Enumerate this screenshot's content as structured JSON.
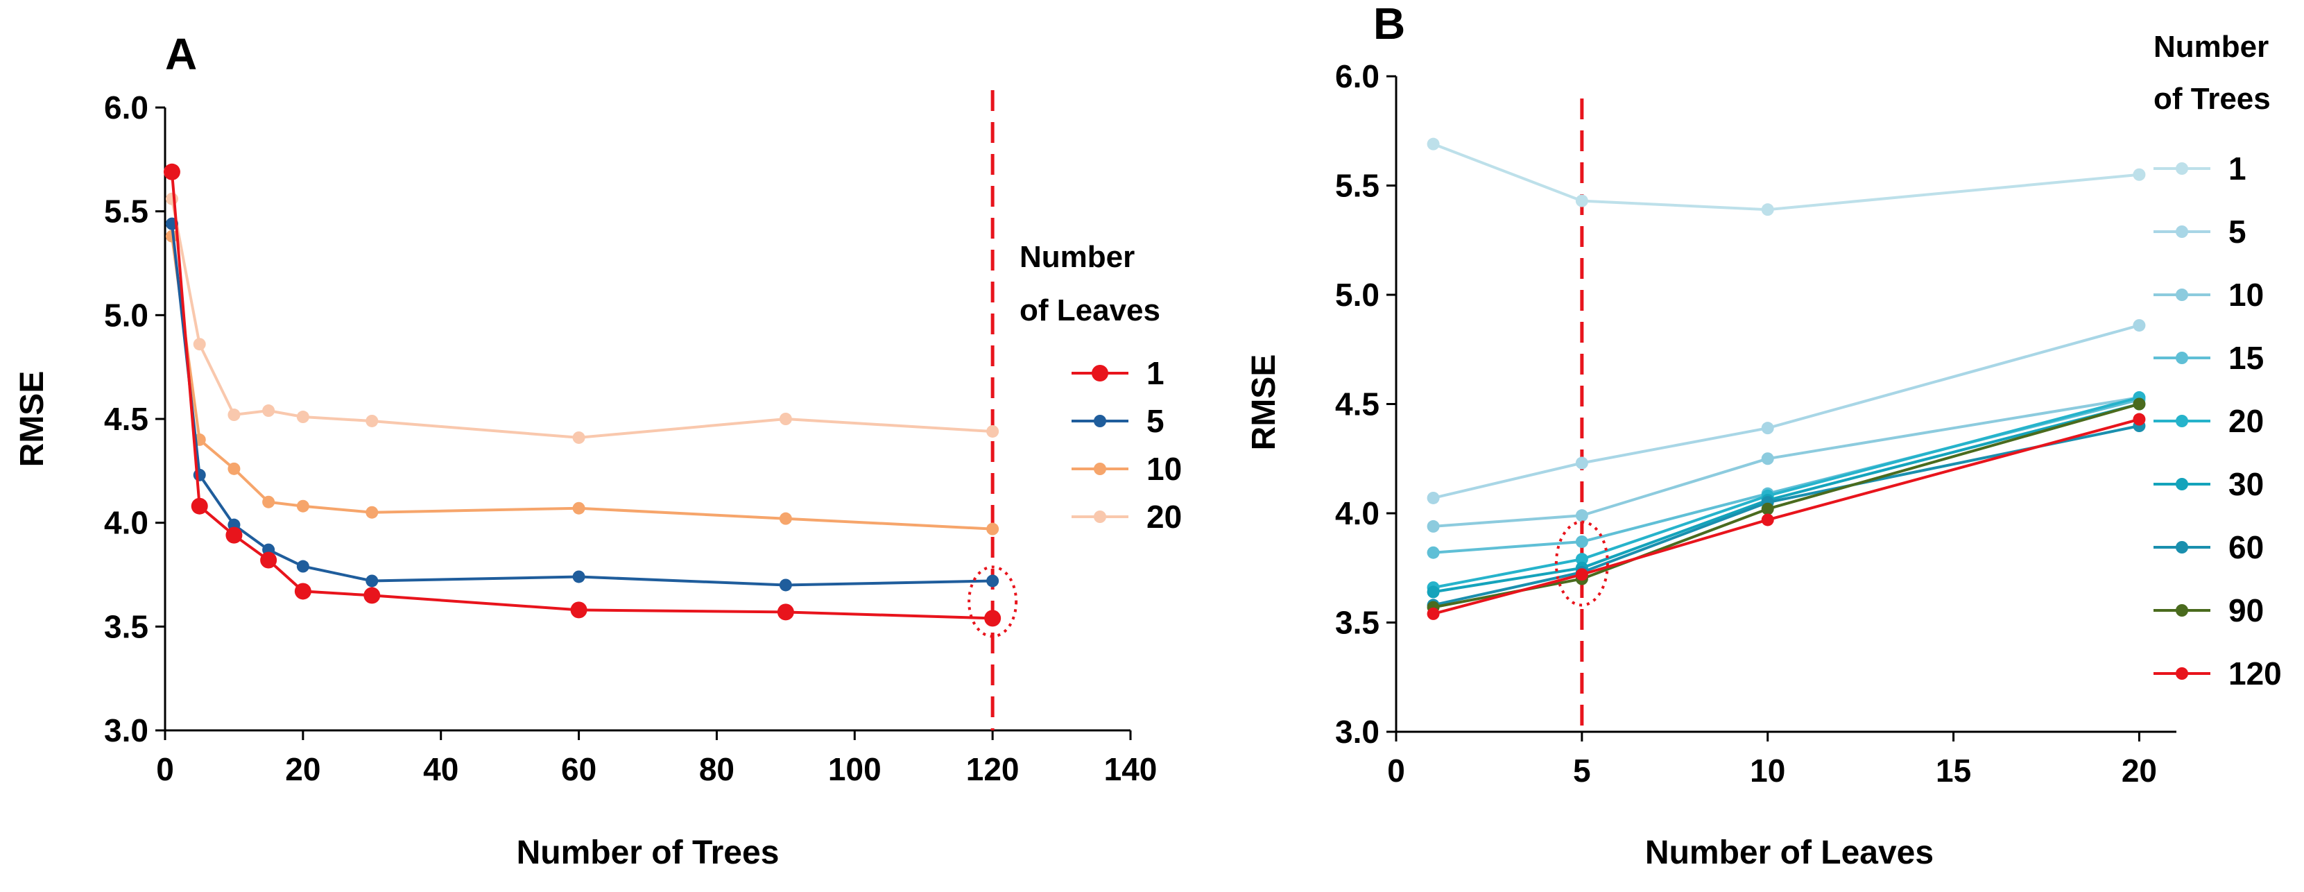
{
  "chart_data": [
    {
      "panel": "A",
      "type": "line",
      "xlabel": "Number of Trees",
      "ylabel": "RMSE",
      "xlim": [
        0,
        140
      ],
      "ylim": [
        3.0,
        6.0
      ],
      "x_ticks": [
        "0",
        "20",
        "40",
        "60",
        "80",
        "100",
        "120",
        "140"
      ],
      "y_ticks": [
        "3.0",
        "3.5",
        "4.0",
        "4.5",
        "5.0",
        "5.5",
        "6.0"
      ],
      "legend_title": [
        "Number",
        "of Leaves"
      ],
      "reference_line_x": 120,
      "highlight": {
        "x": 120,
        "y": 3.62
      },
      "x": [
        1,
        5,
        10,
        15,
        20,
        30,
        60,
        90,
        120
      ],
      "series": [
        {
          "name": "1",
          "color": "#e8141c",
          "values": [
            5.69,
            4.08,
            3.94,
            3.82,
            3.67,
            3.65,
            3.58,
            3.57,
            3.54
          ]
        },
        {
          "name": "5",
          "color": "#1f5d9c",
          "values": [
            5.44,
            4.23,
            3.99,
            3.87,
            3.79,
            3.72,
            3.74,
            3.7,
            3.72
          ]
        },
        {
          "name": "10",
          "color": "#f6a56b",
          "values": [
            5.38,
            4.4,
            4.26,
            4.1,
            4.08,
            4.05,
            4.07,
            4.02,
            3.97
          ]
        },
        {
          "name": "20",
          "color": "#f9c8ad",
          "values": [
            5.56,
            4.86,
            4.52,
            4.54,
            4.51,
            4.49,
            4.41,
            4.5,
            4.44
          ]
        }
      ]
    },
    {
      "panel": "B",
      "type": "line",
      "xlabel": "Number of Leaves",
      "ylabel": "RMSE",
      "xlim": [
        0,
        21
      ],
      "ylim": [
        3.0,
        6.0
      ],
      "x_ticks": [
        "0",
        "5",
        "10",
        "15",
        "20"
      ],
      "x_tick_values": [
        0,
        5,
        10,
        15,
        20
      ],
      "y_ticks": [
        "3.0",
        "3.5",
        "4.0",
        "4.5",
        "5.0",
        "5.5",
        "6.0"
      ],
      "legend_title": [
        "Number",
        "of Trees"
      ],
      "reference_line_x": 5,
      "highlight": {
        "x": 5,
        "y": 3.77
      },
      "x": [
        1,
        5,
        10,
        20
      ],
      "series": [
        {
          "name": "1",
          "color": "#bde0ea",
          "values": [
            5.69,
            5.43,
            5.39,
            5.55
          ]
        },
        {
          "name": "5",
          "color": "#a8d6e6",
          "values": [
            4.07,
            4.23,
            4.39,
            4.86
          ]
        },
        {
          "name": "10",
          "color": "#8ccbde",
          "values": [
            3.94,
            3.99,
            4.25,
            4.53
          ]
        },
        {
          "name": "15",
          "color": "#5fbfd6",
          "values": [
            3.82,
            3.87,
            4.09,
            4.52
          ]
        },
        {
          "name": "20",
          "color": "#26b3cb",
          "values": [
            3.66,
            3.79,
            4.08,
            4.53
          ]
        },
        {
          "name": "30",
          "color": "#14a3bb",
          "values": [
            3.64,
            3.75,
            4.06,
            4.5
          ]
        },
        {
          "name": "60",
          "color": "#1a8fae",
          "values": [
            3.58,
            3.73,
            4.05,
            4.4
          ]
        },
        {
          "name": "90",
          "color": "#4a6b1e",
          "values": [
            3.57,
            3.7,
            4.02,
            4.5
          ]
        },
        {
          "name": "120",
          "color": "#e8141c",
          "values": [
            3.54,
            3.72,
            3.97,
            4.43
          ]
        }
      ]
    }
  ]
}
